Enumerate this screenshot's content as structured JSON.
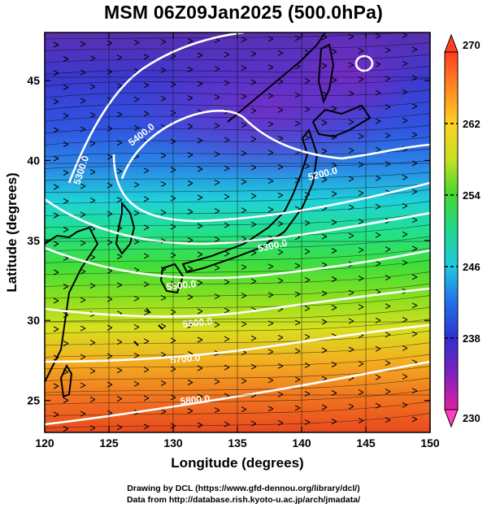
{
  "title": "MSM 06Z09Jan2025 (500.0hPa)",
  "axes": {
    "xlabel": "Longitude (degrees)",
    "ylabel": "Latitude  (degrees)",
    "xlim": [
      120,
      150
    ],
    "ylim": [
      23,
      48
    ],
    "xticks": [
      120,
      125,
      130,
      135,
      140,
      145,
      150
    ],
    "yticks": [
      25,
      30,
      35,
      40,
      45
    ]
  },
  "colorbar": {
    "min": 230,
    "max": 270,
    "tick_labels": [
      "270",
      "262",
      "254",
      "246",
      "238",
      "230"
    ],
    "tick_values": [
      270,
      262,
      254,
      246,
      238,
      230
    ]
  },
  "contour_labels": [
    "5300.0",
    "5400.0",
    "5200.0",
    "5300.0",
    "5500.0",
    "5600.0",
    "5700.0",
    "5800.0"
  ],
  "footer": {
    "line1": "Drawing by DCL (https://www.gfd-dennou.org/library/dcl/)",
    "line2": "Data from http://database.rish.kyoto-u.ac.jp/arch/jmadata/"
  },
  "colors": {
    "contour": "#ffffff",
    "coastline": "#000000",
    "arrows": "#000000"
  }
}
